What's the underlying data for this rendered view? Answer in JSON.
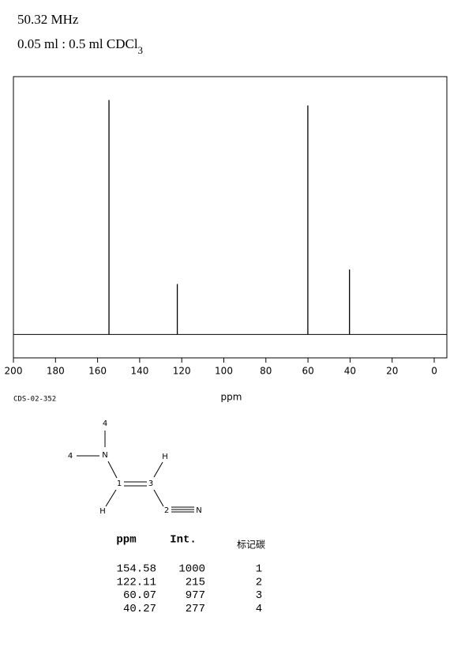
{
  "chart_data": {
    "type": "stem",
    "title": "50.32 MHz",
    "subtitle": "0.05 ml : 0.5 ml CDCl",
    "subtitle_subscript": "3",
    "xlabel": "ppm",
    "code": "CDS-02-352",
    "x": [
      154.58,
      122.11,
      60.07,
      40.27
    ],
    "values": [
      1000,
      215,
      977,
      277
    ],
    "color": "#000000",
    "xlim": [
      200,
      -6
    ],
    "ylim": [
      -100,
      1100
    ],
    "xticks": [
      200,
      180,
      160,
      140,
      120,
      100,
      80,
      60,
      40,
      20,
      0
    ],
    "assignments": [
      1,
      2,
      3,
      4
    ],
    "table_headers": [
      "ppm",
      "Int.",
      "标记碳"
    ]
  },
  "structure": {
    "atoms": [
      "4",
      "4",
      "N",
      "1",
      "3",
      "H",
      "H",
      "2",
      "N"
    ]
  }
}
